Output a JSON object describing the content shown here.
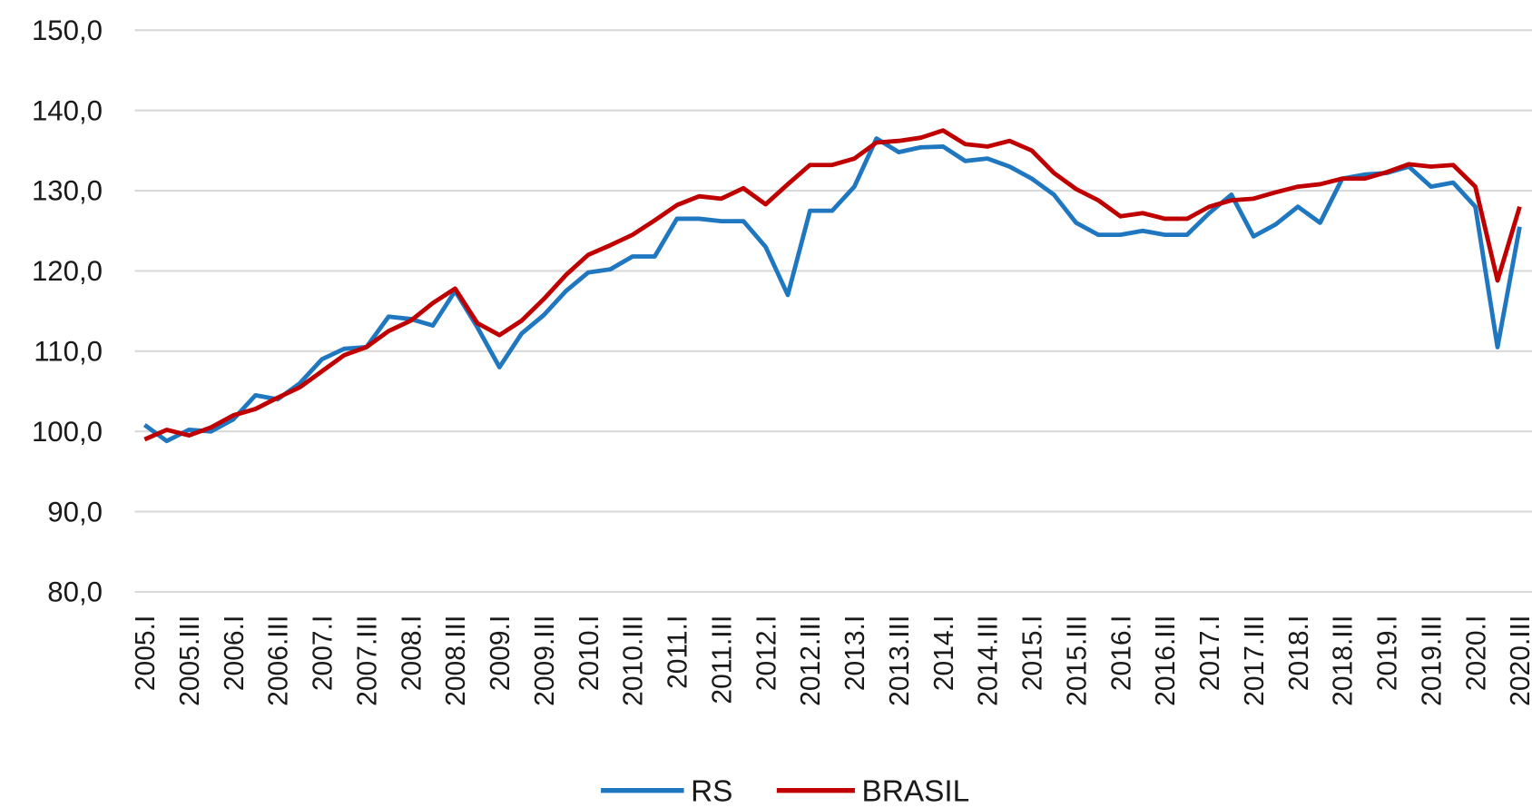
{
  "chart_data": {
    "type": "line",
    "categories": [
      "2005.I",
      null,
      "2005.III",
      null,
      "2006.I",
      null,
      "2006.III",
      null,
      "2007.I",
      null,
      "2007.III",
      null,
      "2008.I",
      null,
      "2008.III",
      null,
      "2009.I",
      null,
      "2009.III",
      null,
      "2010.I",
      null,
      "2010.III",
      null,
      "2011.I",
      null,
      "2011.III",
      null,
      "2012.I",
      null,
      "2012.III",
      null,
      "2013.I",
      null,
      "2013.III",
      null,
      "2014.I",
      null,
      "2014.III",
      null,
      "2015.I",
      null,
      "2015.III",
      null,
      "2016.I",
      null,
      "2016.III",
      null,
      "2017.I",
      null,
      "2017.III",
      null,
      "2018.I",
      null,
      "2018.III",
      null,
      "2019.I",
      null,
      "2019.III",
      null,
      "2020.I",
      null,
      "2020.III"
    ],
    "series": [
      {
        "name": "RS",
        "color": "#1f77c0",
        "values": [
          100.8,
          98.8,
          100.2,
          100.0,
          101.5,
          104.5,
          104.0,
          106.0,
          109.0,
          110.3,
          110.5,
          114.3,
          114.0,
          113.2,
          117.5,
          113.0,
          108.0,
          112.2,
          114.5,
          117.5,
          119.8,
          120.2,
          121.8,
          121.8,
          126.5,
          126.5,
          126.2,
          126.2,
          123.0,
          117.0,
          127.5,
          127.5,
          130.5,
          136.5,
          134.8,
          135.4,
          135.5,
          133.7,
          134.0,
          133.0,
          131.5,
          129.5,
          126.0,
          124.5,
          124.5,
          125.0,
          124.5,
          124.5,
          127.2,
          129.5,
          124.3,
          125.8,
          128.0,
          126.0,
          131.5,
          132.0,
          132.2,
          133.0,
          130.5,
          131.0,
          128.0,
          110.5,
          125.5
        ]
      },
      {
        "name": "BRASIL",
        "color": "#c00000",
        "values": [
          99.0,
          100.2,
          99.5,
          100.5,
          102.0,
          102.8,
          104.2,
          105.5,
          107.5,
          109.5,
          110.5,
          112.5,
          113.8,
          116.0,
          117.8,
          113.5,
          112.0,
          113.8,
          116.5,
          119.5,
          122.0,
          123.2,
          124.5,
          126.3,
          128.2,
          129.3,
          129.0,
          130.3,
          128.3,
          130.8,
          133.2,
          133.2,
          134.0,
          136.0,
          136.2,
          136.6,
          137.5,
          135.8,
          135.5,
          136.2,
          135.0,
          132.2,
          130.2,
          128.8,
          126.8,
          127.2,
          126.5,
          126.5,
          128.0,
          128.8,
          129.0,
          129.8,
          130.5,
          130.8,
          131.5,
          131.5,
          132.3,
          133.3,
          133.0,
          133.2,
          130.5,
          118.8,
          128.0
        ]
      }
    ],
    "ylim": [
      80,
      150
    ],
    "yticks": [
      {
        "value": 80,
        "label": "80,0"
      },
      {
        "value": 90,
        "label": "90,0"
      },
      {
        "value": 100,
        "label": "100,0"
      },
      {
        "value": 110,
        "label": "110,0"
      },
      {
        "value": 120,
        "label": "120,0"
      },
      {
        "value": 130,
        "label": "130,0"
      },
      {
        "value": 140,
        "label": "140,0"
      },
      {
        "value": 150,
        "label": "150,0"
      }
    ],
    "grid": true,
    "legend": "bottom"
  }
}
